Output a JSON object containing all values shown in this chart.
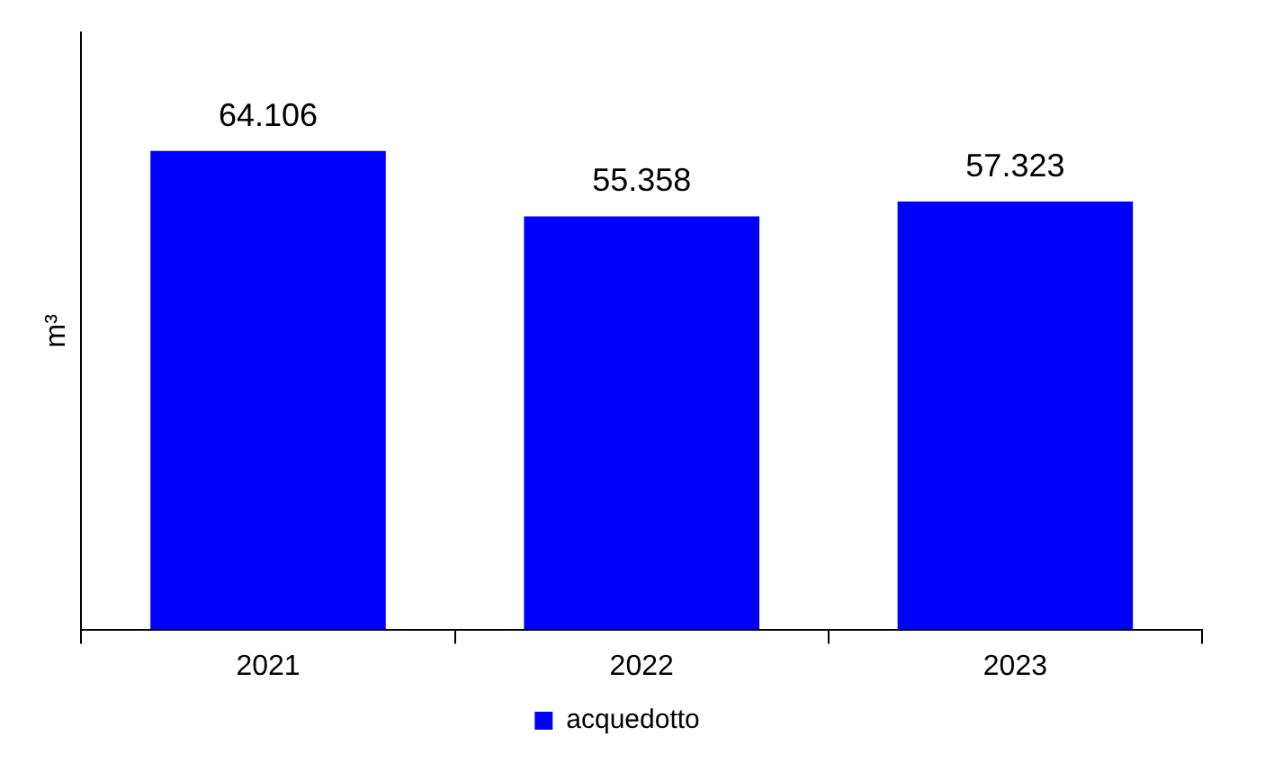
{
  "chart_data": {
    "type": "bar",
    "ylabel": "m³",
    "categories": [
      "2021",
      "2022",
      "2023"
    ],
    "series": [
      {
        "name": "acquedotto",
        "color": "#0000ff",
        "values": [
          64106,
          55358,
          57323
        ],
        "value_labels": [
          "64.106",
          "55.358",
          "57.323"
        ]
      }
    ],
    "legend": "bottom",
    "grid": false
  }
}
